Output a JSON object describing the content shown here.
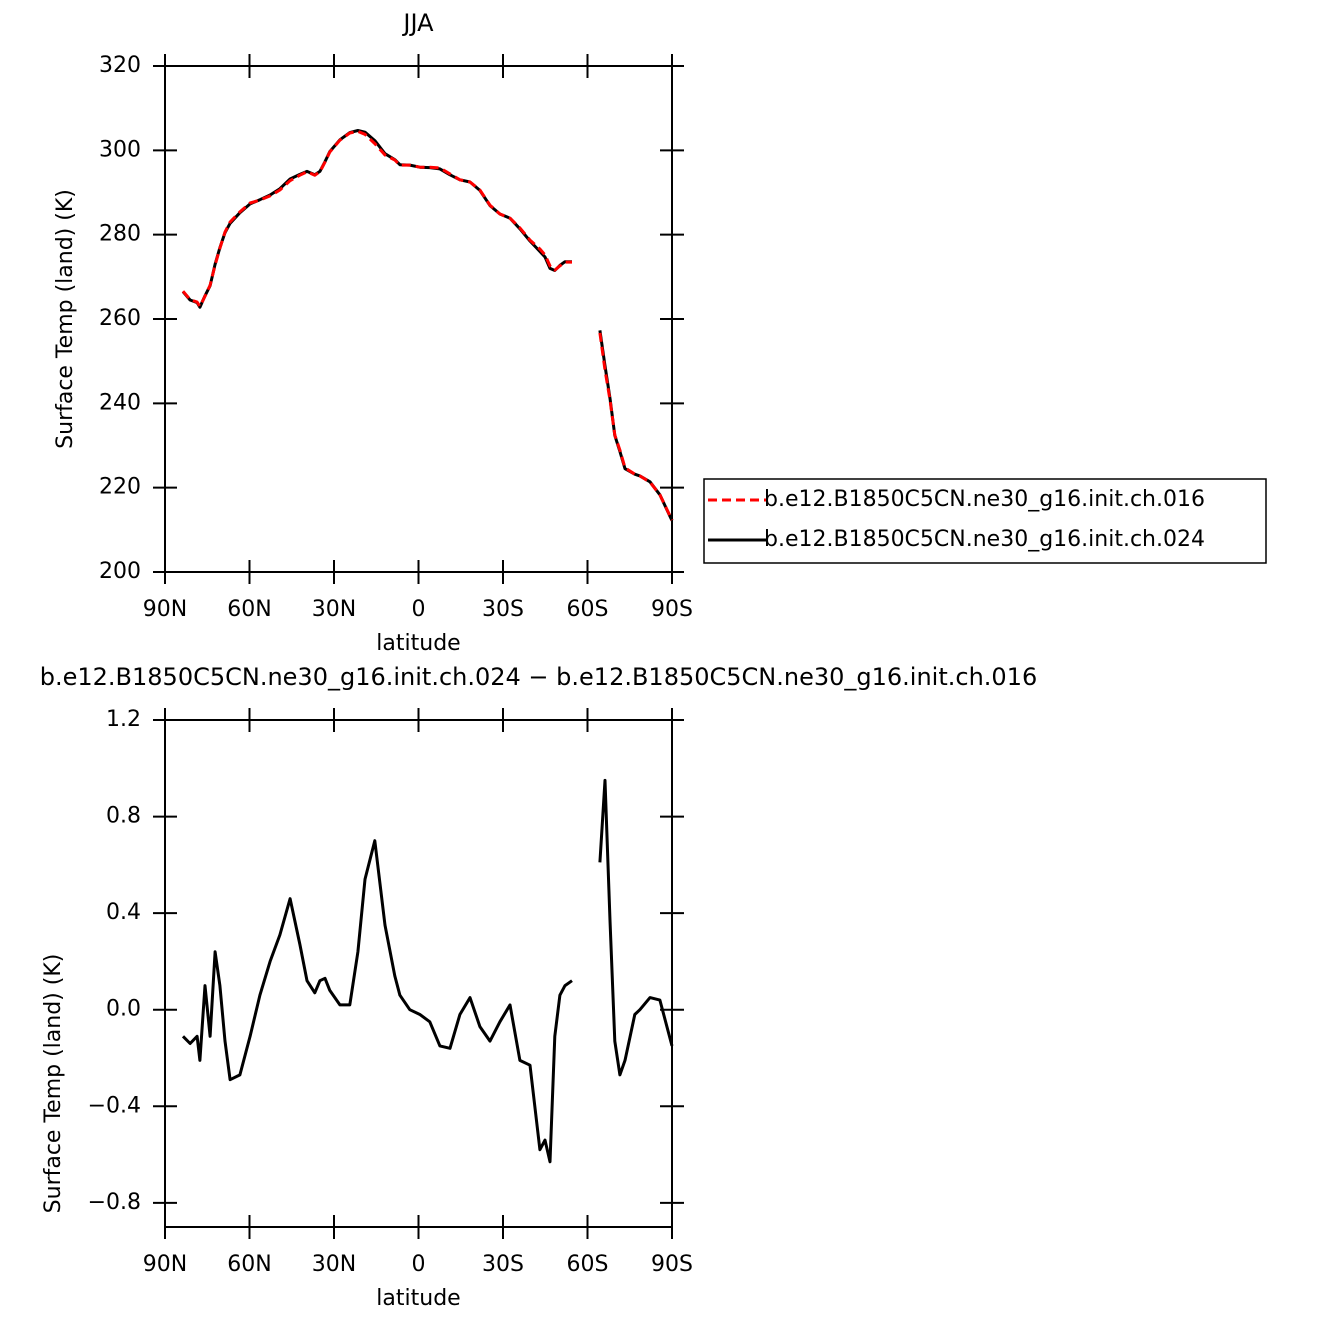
{
  "chart_data": [
    {
      "type": "line",
      "title": "JJA",
      "xlabel": "latitude",
      "ylabel": "Surface Temp (land) (K)",
      "x": [
        83.6,
        81.1,
        78.6,
        77.6,
        75.8,
        74.0,
        72.2,
        70.5,
        68.7,
        66.9,
        63.4,
        59.8,
        56.3,
        52.7,
        49.2,
        45.6,
        42.1,
        39.6,
        36.8,
        35.0,
        33.2,
        31.5,
        27.9,
        24.4,
        21.5,
        19.0,
        15.5,
        11.9,
        8.4,
        6.6,
        3.1,
        -0.5,
        -4.0,
        -7.6,
        -11.2,
        -14.7,
        -18.3,
        -21.8,
        -25.4,
        -28.9,
        -32.5,
        -36.0,
        -39.6,
        -43.1,
        -44.9,
        -46.7,
        -48.4,
        -50.2,
        -52.0,
        -54.5,
        -60.0,
        -64.4,
        -66.2,
        -68.0,
        -69.7,
        -71.5,
        -73.3,
        -76.8,
        -78.6,
        -82.2,
        -85.7,
        -90.0
      ],
      "series": [
        {
          "name": "b.e12.B1850C5CN.ne30_g16.init.ch.016",
          "color": "#ff0000",
          "dash": true,
          "values": [
            266.6,
            264.6,
            264.0,
            263.0,
            265.4,
            268.0,
            272.8,
            276.8,
            280.6,
            283.0,
            285.4,
            287.5,
            288.2,
            289.2,
            290.6,
            292.8,
            294.1,
            294.9,
            294.1,
            294.9,
            297.2,
            299.6,
            302.4,
            304.1,
            304.5,
            303.8,
            301.6,
            298.9,
            297.7,
            296.5,
            296.5,
            296.0,
            296.0,
            295.8,
            294.4,
            293.0,
            292.5,
            290.6,
            287.0,
            284.9,
            283.9,
            281.6,
            278.7,
            276.6,
            275.2,
            272.6,
            271.6,
            272.6,
            273.5,
            273.5,
            null,
            256.7,
            247.9,
            240.8,
            232.5,
            228.9,
            224.7,
            223.2,
            222.8,
            221.3,
            218.3,
            212.3
          ]
        },
        {
          "name": "b.e12.B1850C5CN.ne30_g16.init.ch.024",
          "color": "#000000",
          "dash": false,
          "values": [
            266.5,
            264.5,
            263.9,
            262.8,
            265.5,
            267.9,
            273.0,
            276.9,
            280.5,
            282.7,
            285.2,
            287.3,
            288.3,
            289.4,
            290.9,
            293.2,
            294.3,
            295.0,
            294.2,
            295.0,
            297.3,
            299.7,
            302.5,
            304.2,
            304.7,
            304.3,
            302.3,
            299.2,
            297.8,
            296.6,
            296.5,
            296.0,
            295.9,
            295.6,
            294.2,
            293.0,
            292.5,
            290.5,
            286.9,
            284.9,
            283.9,
            281.4,
            278.5,
            276.0,
            274.7,
            272.0,
            271.5,
            272.7,
            273.6,
            273.6,
            null,
            257.3,
            248.9,
            241.2,
            232.4,
            228.6,
            224.5,
            223.2,
            222.8,
            221.4,
            218.3,
            212.2
          ]
        }
      ],
      "xlim": [
        90,
        -90
      ],
      "ylim": [
        200,
        320
      ],
      "xticks": [
        {
          "value": 90,
          "label": "90N"
        },
        {
          "value": 60,
          "label": "60N"
        },
        {
          "value": 30,
          "label": "30N"
        },
        0,
        {
          "value": -30,
          "label": "30S"
        },
        {
          "value": -60,
          "label": "60S"
        },
        {
          "value": -90,
          "label": "90S"
        }
      ],
      "yticks": [
        200,
        220,
        240,
        260,
        280,
        300,
        320
      ]
    },
    {
      "type": "line",
      "title": "b.e12.B1850C5CN.ne30_g16.init.ch.024 − b.e12.B1850C5CN.ne30_g16.init.ch.016",
      "xlabel": "latitude",
      "ylabel": "Surface Temp (land) (K)",
      "x": [
        83.6,
        81.1,
        78.6,
        77.6,
        75.8,
        74.0,
        72.2,
        70.5,
        68.7,
        66.9,
        63.4,
        59.8,
        56.3,
        52.7,
        49.2,
        45.6,
        42.1,
        39.6,
        36.8,
        35.0,
        33.2,
        31.5,
        27.9,
        24.4,
        21.5,
        19.0,
        15.5,
        11.9,
        8.4,
        6.6,
        3.1,
        -0.5,
        -4.0,
        -7.6,
        -11.2,
        -14.7,
        -18.3,
        -21.8,
        -25.4,
        -28.9,
        -32.5,
        -36.0,
        -39.6,
        -43.1,
        -44.9,
        -46.7,
        -48.4,
        -50.2,
        -52.0,
        -54.5,
        -60.0,
        -64.4,
        -66.2,
        -68.0,
        -69.7,
        -71.5,
        -73.3,
        -76.8,
        -78.6,
        -82.2,
        -85.7,
        -90.0
      ],
      "series": [
        {
          "color": "#000000",
          "values": [
            -0.11,
            -0.14,
            -0.11,
            -0.21,
            0.1,
            -0.11,
            0.24,
            0.1,
            -0.13,
            -0.29,
            -0.27,
            -0.11,
            0.06,
            0.2,
            0.31,
            0.46,
            0.27,
            0.12,
            0.07,
            0.12,
            0.13,
            0.08,
            0.02,
            0.02,
            0.24,
            0.54,
            0.7,
            0.35,
            0.14,
            0.06,
            0.0,
            -0.02,
            -0.05,
            -0.15,
            -0.16,
            -0.02,
            0.05,
            -0.07,
            -0.13,
            -0.05,
            0.02,
            -0.21,
            -0.23,
            -0.58,
            -0.54,
            -0.63,
            -0.11,
            0.06,
            0.1,
            0.12,
            null,
            0.61,
            0.95,
            0.37,
            -0.13,
            -0.27,
            -0.21,
            -0.02,
            0.0,
            0.05,
            0.04,
            -0.15
          ]
        }
      ],
      "xlim": [
        90,
        -90
      ],
      "ylim": [
        -0.9,
        1.2
      ],
      "xticks": [
        {
          "value": 90,
          "label": "90N"
        },
        {
          "value": 60,
          "label": "60N"
        },
        {
          "value": 30,
          "label": "30N"
        },
        0,
        {
          "value": -30,
          "label": "30S"
        },
        {
          "value": -60,
          "label": "60S"
        },
        {
          "value": -90,
          "label": "90S"
        }
      ],
      "yticks": [
        {
          "value": -0.8,
          "label": "−0.8"
        },
        {
          "value": -0.4,
          "label": "−0.4"
        },
        {
          "value": 0,
          "label": "0.0"
        },
        {
          "value": 0.4,
          "label": "0.4"
        },
        {
          "value": 0.8,
          "label": "0.8"
        },
        {
          "value": 1.2,
          "label": "1.2"
        }
      ]
    }
  ]
}
